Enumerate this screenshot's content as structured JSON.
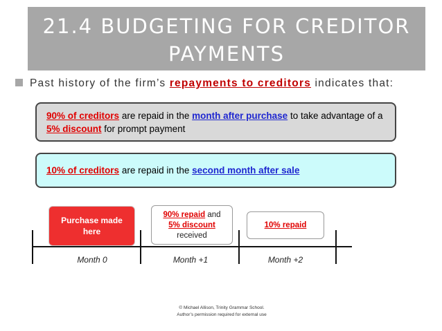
{
  "title": {
    "line1": "21.4 BUDGETING FOR CREDITOR",
    "line2": "PAYMENTS"
  },
  "bullet": {
    "before": "Past history of the firm’s",
    "highlight": "repayments to creditors",
    "after": "indicates that:"
  },
  "box1": {
    "red1": "90% of creditors",
    "text1": "are repaid in the",
    "blue1": "month after purchase",
    "text2": "to take advantage of a",
    "red2": "5% discount",
    "text3": "for prompt payment"
  },
  "box2": {
    "red1": "10% of creditors",
    "text1": "are repaid in the",
    "blue1": "second month after sale"
  },
  "timeline": {
    "purchase": {
      "line1": "Purchase made",
      "line2": "here"
    },
    "month1_box": {
      "red1": "90% repaid",
      "and": "and",
      "red2": "5% discount",
      "received": "received"
    },
    "month2_box": {
      "red1": "10% repaid"
    },
    "months": [
      "Month 0",
      "Month +1",
      "Month +2"
    ]
  },
  "footer": {
    "line1": "© Michael Allison, Trinity Grammar School.",
    "line2": "Author’s permission required for external use"
  },
  "colors": {
    "title_bg": "#a7a7a7",
    "red": "#e00000",
    "blue": "#1f27d0",
    "box1_bg": "#d9d9d9",
    "box2_bg": "#ccfbfb",
    "purchase_bg": "#ee2f2f"
  }
}
